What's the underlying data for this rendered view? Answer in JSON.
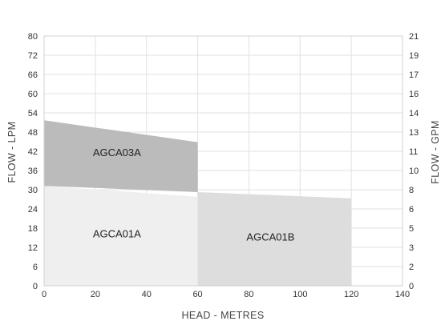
{
  "chart_data": {
    "type": "area",
    "xlabel": "HEAD - METRES",
    "ylabel_left": "FLOW - LPM",
    "ylabel_right": "FLOW - GPM",
    "xlim": [
      0,
      140
    ],
    "ylim_left": [
      0,
      80
    ],
    "ylim_right": [
      0,
      21
    ],
    "x_ticks": [
      0,
      20,
      40,
      60,
      80,
      100,
      120,
      140
    ],
    "y_ticks_left": [
      0,
      6,
      12,
      18,
      24,
      30,
      36,
      42,
      48,
      54,
      60,
      66,
      72,
      80
    ],
    "y_ticks_right": [
      0,
      2,
      3,
      5,
      6,
      8,
      10,
      11,
      13,
      14,
      16,
      17,
      19,
      21
    ],
    "grid": true,
    "series": [
      {
        "name": "AGCA01A",
        "color": "#efefef",
        "points": [
          [
            0,
            0
          ],
          [
            0,
            32
          ],
          [
            60,
            28.5
          ],
          [
            60,
            0
          ]
        ],
        "label_at": [
          20,
          16
        ]
      },
      {
        "name": "AGCA01B",
        "color": "#dddddd",
        "points": [
          [
            60,
            0
          ],
          [
            60,
            30
          ],
          [
            120,
            28
          ],
          [
            120,
            0
          ]
        ],
        "label_at": [
          80,
          15
        ]
      },
      {
        "name": "AGCA03A",
        "color": "#bbbbbb",
        "points": [
          [
            0,
            53
          ],
          [
            60,
            46
          ],
          [
            60,
            30
          ],
          [
            0,
            32
          ]
        ],
        "label_at": [
          20,
          42
        ]
      }
    ]
  }
}
